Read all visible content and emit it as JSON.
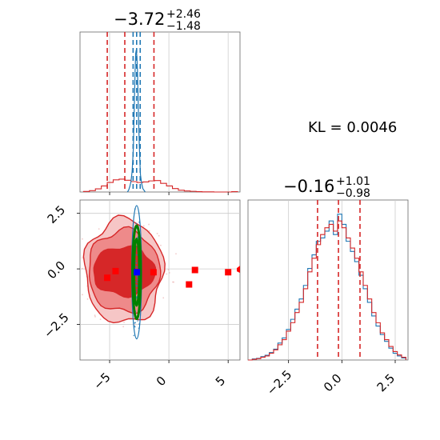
{
  "chart_data": {
    "type": "corner",
    "colors": {
      "prior": "#d62728",
      "posterior": "#1f77b4",
      "contour": "#008000",
      "marker_red": "#ff0000",
      "marker_blue": "#0000ff"
    },
    "annotation": {
      "kl_text": "KL = 0.0046"
    },
    "params": [
      {
        "title": "−3.72",
        "sup": "+2.46",
        "sub": "−1.48",
        "range": [
          -7.5,
          6.0
        ],
        "ticks": [
          -5,
          0,
          5
        ],
        "tick_labels": [
          "−5",
          "0",
          "5"
        ],
        "red_quantiles": [
          -5.2,
          -3.72,
          -1.26
        ],
        "blue_quantiles": [
          -3.02,
          -2.72,
          -2.42
        ]
      },
      {
        "title": "−0.16",
        "sup": "+1.01",
        "sub": "−0.98",
        "range": [
          -4.4,
          3.1
        ],
        "ticks": [
          -2.5,
          0.0,
          2.5
        ],
        "tick_labels": [
          "−2.5",
          "0.0",
          "2.5"
        ],
        "red_quantiles": [
          -1.14,
          -0.16,
          0.85
        ]
      }
    ],
    "hist_x": {
      "bins": [
        -7.2,
        -6.7,
        -6.2,
        -5.7,
        -5.2,
        -4.7,
        -4.2,
        -3.7,
        -3.2,
        -2.7,
        -2.2,
        -1.7,
        -1.2,
        -0.7,
        -0.2,
        0.3,
        0.8,
        1.3,
        1.8,
        2.3,
        2.8,
        3.3,
        3.8,
        4.3,
        4.8,
        5.3,
        5.8
      ],
      "red": [
        0.003,
        0.008,
        0.018,
        0.035,
        0.055,
        0.07,
        0.074,
        0.068,
        0.06,
        0.055,
        0.058,
        0.064,
        0.066,
        0.05,
        0.035,
        0.02,
        0.01,
        0.006,
        0.004,
        0.002,
        0.001,
        0.001,
        0.0,
        0.0,
        0.0,
        0.002,
        0.003
      ],
      "blue_x": [
        -3.5,
        -3.4,
        -3.3,
        -3.2,
        -3.1,
        -3.0,
        -2.95,
        -2.9,
        -2.85,
        -2.8,
        -2.75,
        -2.7,
        -2.65,
        -2.6,
        -2.55,
        -2.5,
        -2.45,
        -2.4,
        -2.3,
        -2.2,
        -2.1,
        -2.0
      ],
      "blue": [
        0.0,
        0.01,
        0.03,
        0.06,
        0.12,
        0.25,
        0.4,
        0.55,
        0.7,
        0.8,
        0.82,
        0.78,
        0.7,
        0.55,
        0.4,
        0.28,
        0.18,
        0.1,
        0.05,
        0.02,
        0.01,
        0.0
      ],
      "y_max": 0.9
    },
    "hist_y": {
      "bins": [
        -4.4,
        -4.2,
        -4.0,
        -3.8,
        -3.6,
        -3.4,
        -3.2,
        -3.0,
        -2.8,
        -2.6,
        -2.4,
        -2.2,
        -2.0,
        -1.8,
        -1.6,
        -1.4,
        -1.2,
        -1.0,
        -0.8,
        -0.6,
        -0.4,
        -0.2,
        0.0,
        0.2,
        0.4,
        0.6,
        0.8,
        1.0,
        1.2,
        1.4,
        1.6,
        1.8,
        2.0,
        2.2,
        2.4,
        2.6,
        2.8,
        3.0
      ],
      "red": [
        0.0,
        0.002,
        0.004,
        0.008,
        0.012,
        0.02,
        0.03,
        0.045,
        0.06,
        0.085,
        0.11,
        0.14,
        0.17,
        0.21,
        0.26,
        0.3,
        0.34,
        0.37,
        0.39,
        0.4,
        0.38,
        0.41,
        0.39,
        0.36,
        0.33,
        0.3,
        0.26,
        0.22,
        0.18,
        0.14,
        0.11,
        0.08,
        0.06,
        0.04,
        0.025,
        0.015,
        0.008,
        0.004
      ],
      "blue": [
        0.0,
        0.003,
        0.005,
        0.01,
        0.014,
        0.022,
        0.032,
        0.05,
        0.065,
        0.09,
        0.12,
        0.15,
        0.18,
        0.22,
        0.27,
        0.31,
        0.35,
        0.36,
        0.38,
        0.41,
        0.37,
        0.43,
        0.4,
        0.35,
        0.32,
        0.29,
        0.25,
        0.21,
        0.17,
        0.13,
        0.1,
        0.075,
        0.055,
        0.035,
        0.02,
        0.012,
        0.006,
        0.003
      ],
      "y_max": 0.46
    },
    "scatter_2d": {
      "x_range": [
        -7.5,
        6.0
      ],
      "y_range": [
        -4.1,
        3.1
      ],
      "y_ticks": [
        -2.5,
        0.0,
        2.5
      ],
      "y_tick_labels": [
        "−2.5",
        "0.0",
        "2.5"
      ],
      "red_markers": [
        [
          -5.2,
          -0.4
        ],
        [
          -4.5,
          -0.1
        ],
        [
          -2.7,
          -0.15
        ],
        [
          -1.3,
          -0.15
        ],
        [
          1.7,
          -0.7
        ],
        [
          2.2,
          -0.05
        ],
        [
          5.0,
          -0.15
        ]
      ],
      "blue_marker": [
        -2.7,
        -0.15
      ],
      "red_contours": [
        {
          "cx": -3.8,
          "cy": -0.1,
          "rx": 3.3,
          "ry": 2.35,
          "fill": "#f6c6c6"
        },
        {
          "cx": -3.8,
          "cy": -0.1,
          "rx": 3.0,
          "ry": 1.85,
          "fill": "#ee8a8a"
        },
        {
          "cx": -3.8,
          "cy": -0.1,
          "rx": 2.6,
          "ry": 1.1,
          "fill": "#d62728"
        }
      ],
      "green_contours": [
        {
          "cx": -2.72,
          "cy": -0.15,
          "rx": 0.35,
          "ry": 2.1
        },
        {
          "cx": -2.72,
          "cy": -0.15,
          "rx": 0.22,
          "ry": 1.5
        }
      ]
    }
  }
}
